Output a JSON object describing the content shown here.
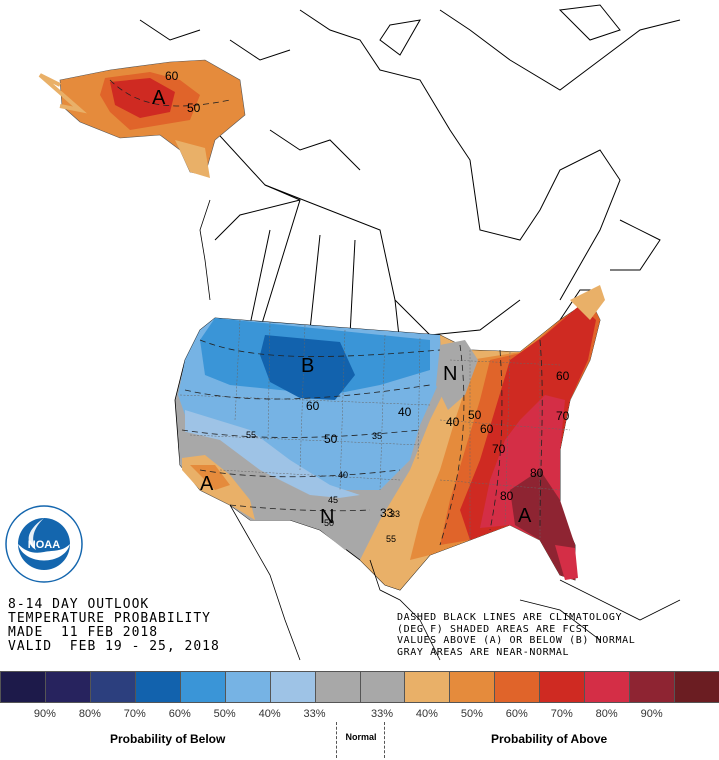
{
  "title_block": {
    "line1": "8-14 DAY OUTLOOK",
    "line2": "TEMPERATURE PROBABILITY",
    "line3": "MADE  11 FEB 2018",
    "line4": "VALID  FEB 19 - 25, 2018"
  },
  "notes": {
    "line1": "DASHED BLACK LINES ARE CLIMATOLOGY",
    "line2": "(DEG F) SHADED AREAS ARE FCST",
    "line3": "VALUES ABOVE (A) OR BELOW (B) NORMAL",
    "line4": "GRAY AREAS ARE NEAR-NORMAL"
  },
  "map_labels": {
    "below_center": "B",
    "above_alaska": "A",
    "above_southeast": "A",
    "above_southwest": "A",
    "normal_ohio": "N",
    "normal_texas": "N"
  },
  "contour_labels": [
    "60",
    "50",
    "40",
    "35",
    "33",
    "40",
    "45",
    "50",
    "55",
    "60",
    "70",
    "80",
    "80",
    "50",
    "60",
    "40",
    "33",
    "55",
    "70",
    "60",
    "50"
  ],
  "legend": {
    "colors": [
      "#1d1a4a",
      "#27235e",
      "#2c3f7e",
      "#1262ad",
      "#3a95d7",
      "#76b3e4",
      "#9ec3e6",
      "#a8a8a8",
      "#a8a8a8",
      "#e9b068",
      "#e58b3c",
      "#e0642a",
      "#cf2a22",
      "#d42e46",
      "#8e2432",
      "#6b1d22"
    ],
    "percents_below": [
      "90%",
      "80%",
      "70%",
      "60%",
      "50%",
      "40%",
      "33%"
    ],
    "percents_above": [
      "33%",
      "40%",
      "50%",
      "60%",
      "70%",
      "80%",
      "90%"
    ],
    "label_below": "Probability of Below",
    "label_normal": "Normal",
    "label_above": "Probability of Above"
  },
  "logo": {
    "text": "NOAA",
    "ring_text": "NATIONAL OCEANIC AND ATMOSPHERIC ADMINISTRATION",
    "ring_text_bottom": "U.S. DEPARTMENT OF COMMERCE",
    "color": "#1466ae"
  }
}
